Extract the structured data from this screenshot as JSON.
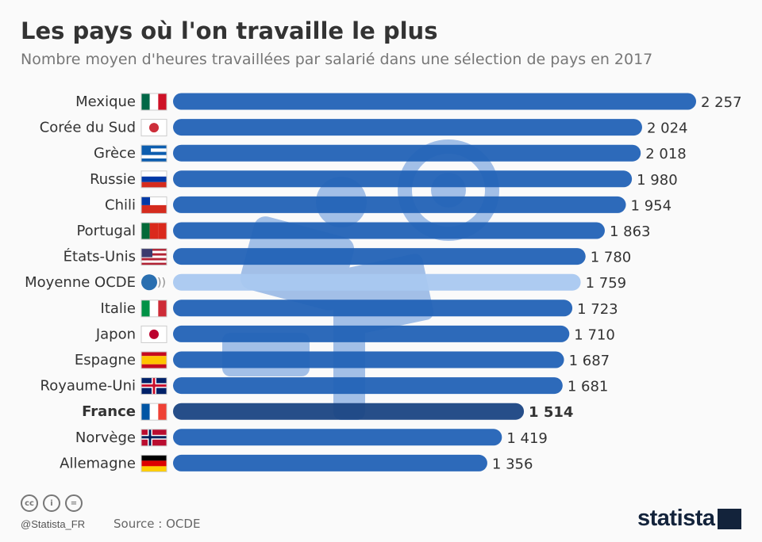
{
  "title": "Les pays où l'on travaille le plus",
  "subtitle": "Nombre moyen d'heures travaillées par salarié dans une sélection de pays en 2017",
  "chart_data": {
    "type": "bar",
    "orientation": "horizontal",
    "categories": [
      "Mexique",
      "Corée du Sud",
      "Grèce",
      "Russie",
      "Chili",
      "Portugal",
      "États-Unis",
      "Moyenne OCDE",
      "Italie",
      "Japon",
      "Espagne",
      "Royaume-Uni",
      "France",
      "Norvège",
      "Allemagne"
    ],
    "values": [
      2257,
      2024,
      2018,
      1980,
      1954,
      1863,
      1780,
      1759,
      1723,
      1710,
      1687,
      1681,
      1514,
      1419,
      1356
    ],
    "value_labels": [
      "2 257",
      "2 024",
      "2 018",
      "1 980",
      "1 954",
      "1 863",
      "1 780",
      "1 759",
      "1 723",
      "1 710",
      "1 687",
      "1 681",
      "1 514",
      "1 419",
      "1 356"
    ],
    "highlight": {
      "Moyenne OCDE": "#a9c8f0",
      "France": "#1a4583"
    },
    "bar_color": "#2262b6",
    "xlim": [
      0,
      2257
    ]
  },
  "footer": {
    "handle": "@Statista_FR",
    "source": "Source : OCDE",
    "logo": "statista",
    "license_icons": [
      "cc-icon",
      "by-icon",
      "nd-icon"
    ],
    "cc": "cc",
    "by": "i",
    "nd": "="
  }
}
